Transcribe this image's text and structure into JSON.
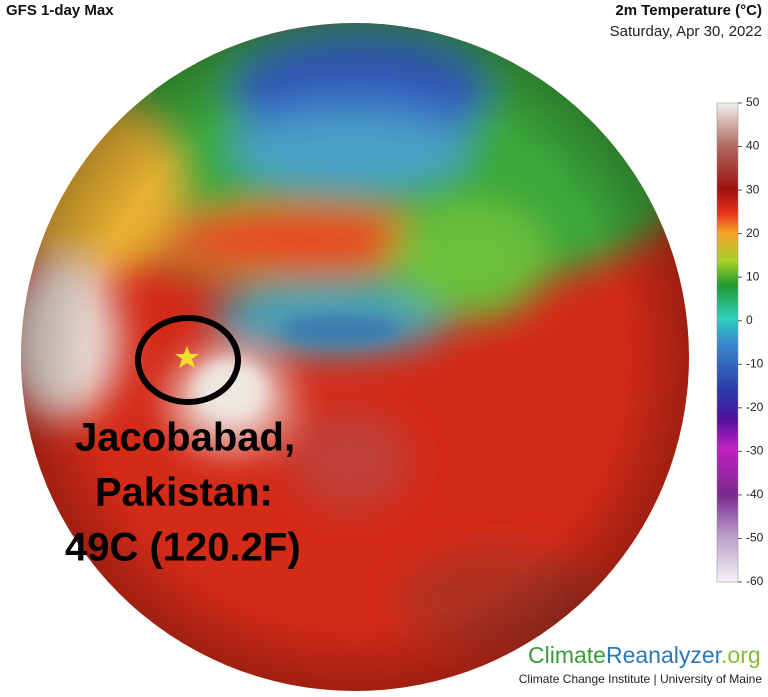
{
  "header": {
    "left_title": "GFS 1-day Max",
    "right_title": "2m Temperature (°C)",
    "date": "Saturday, Apr 30, 2022"
  },
  "colorbar": {
    "range": [
      -60,
      50
    ],
    "ticks": [
      50,
      40,
      30,
      20,
      10,
      0,
      -10,
      -20,
      -30,
      -40,
      -50,
      -60
    ]
  },
  "annotation": {
    "lines": [
      "Jacobabad,",
      "Pakistan:",
      "49C (120.2F)"
    ]
  },
  "footer": {
    "logo_parts": [
      "Climate",
      "Reanalyzer",
      ".org"
    ],
    "credit": "Climate Change Institute | University of Maine"
  }
}
